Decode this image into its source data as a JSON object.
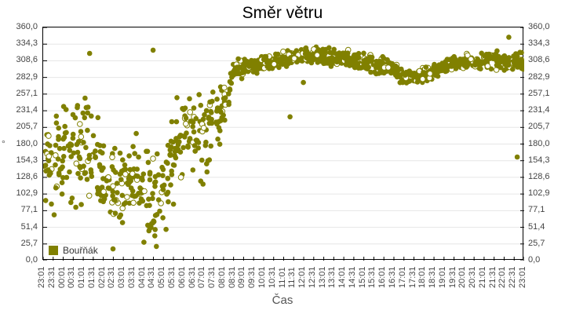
{
  "chart_data": {
    "type": "scatter",
    "title": "Směr větru",
    "xlabel": "Čas",
    "ylabel": "°",
    "ylim": [
      0,
      360
    ],
    "yticks": [
      "0,0",
      "25,7",
      "51,4",
      "77,1",
      "102,9",
      "128,6",
      "154,3",
      "180,0",
      "205,7",
      "231,4",
      "257,1",
      "282,9",
      "308,6",
      "334,3",
      "360,0"
    ],
    "xticks": [
      "23:01",
      "23:31",
      "00:01",
      "00:31",
      "01:01",
      "01:31",
      "02:01",
      "02:31",
      "03:01",
      "03:31",
      "04:01",
      "04:31",
      "05:01",
      "05:31",
      "06:01",
      "06:31",
      "07:01",
      "07:31",
      "08:01",
      "08:31",
      "09:01",
      "09:31",
      "10:01",
      "10:31",
      "11:01",
      "11:31",
      "12:01",
      "12:31",
      "13:01",
      "13:31",
      "14:01",
      "14:31",
      "15:01",
      "15:31",
      "16:01",
      "16:31",
      "17:01",
      "17:31",
      "18:01",
      "18:31",
      "19:01",
      "19:31",
      "20:01",
      "20:31",
      "21:01",
      "21:31",
      "22:01",
      "22:31",
      "23:01"
    ],
    "grid": true,
    "legend_position": "bottom-left-inside",
    "series": [
      {
        "name": "Bouřňák",
        "color": "#808000",
        "note": "per-half-hour estimated center and spread; individual points are not exactly readable",
        "slot_center": [
          140,
          150,
          160,
          165,
          185,
          170,
          120,
          115,
          125,
          120,
          110,
          100,
          120,
          160,
          195,
          205,
          190,
          215,
          240,
          290,
          298,
          300,
          302,
          305,
          310,
          315,
          318,
          318,
          315,
          312,
          312,
          310,
          306,
          303,
          300,
          297,
          285,
          282,
          288,
          292,
          300,
          305,
          306,
          307,
          309,
          308,
          307,
          306,
          308
        ],
        "slot_spread": [
          55,
          55,
          55,
          55,
          75,
          75,
          45,
          40,
          45,
          45,
          50,
          60,
          60,
          55,
          40,
          45,
          55,
          45,
          25,
          12,
          9,
          9,
          9,
          9,
          9,
          9,
          9,
          9,
          9,
          9,
          9,
          9,
          9,
          9,
          9,
          9,
          9,
          9,
          9,
          9,
          9,
          9,
          9,
          9,
          9,
          9,
          9,
          9,
          9
        ],
        "outliers": [
          {
            "x": "01:20",
            "y": 320
          },
          {
            "x": "04:30",
            "y": 325
          },
          {
            "x": "11:20",
            "y": 222
          },
          {
            "x": "12:00",
            "y": 275
          },
          {
            "x": "22:15",
            "y": 345
          },
          {
            "x": "22:40",
            "y": 160
          },
          {
            "x": "04:40",
            "y": 22
          },
          {
            "x": "02:30",
            "y": 18
          }
        ]
      }
    ]
  },
  "legend": {
    "label": "Bouřňák",
    "color": "#808000"
  }
}
